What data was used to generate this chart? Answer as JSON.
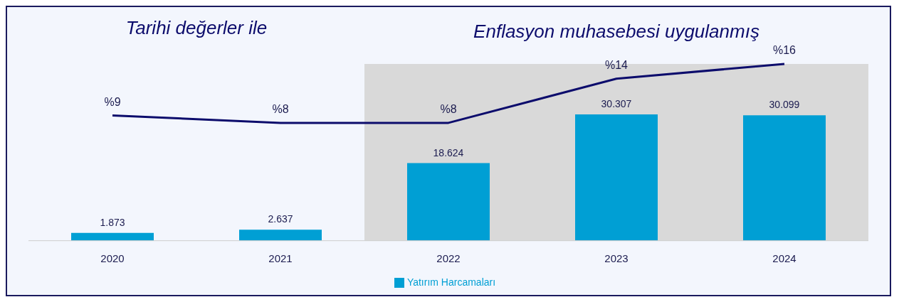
{
  "chart_data": {
    "type": "bar",
    "categories": [
      "2020",
      "2021",
      "2022",
      "2023",
      "2024"
    ],
    "series": [
      {
        "name": "Yatırım Harcamaları",
        "color": "#009fd4",
        "values": [
          1873,
          2637,
          18624,
          30307,
          30099
        ],
        "value_labels": [
          "1.873",
          "2.637",
          "18.624",
          "30.307",
          "30.099"
        ]
      },
      {
        "type": "line",
        "axis": "y2",
        "color": "#0c0c6c",
        "values": [
          9,
          8,
          8,
          14,
          16
        ],
        "value_labels": [
          "%9",
          "%8",
          "%8",
          "%14",
          "%16"
        ]
      }
    ],
    "bands": [
      {
        "axis": "x",
        "from": "2022",
        "to": "2024",
        "label": "Enflasyon muhasebesi uygulanmış",
        "color": "#d9d9d9"
      }
    ],
    "annotations": [
      "Tarihi değerler ile"
    ],
    "legend": "bottom",
    "marker": "none",
    "line_style": "solid"
  }
}
